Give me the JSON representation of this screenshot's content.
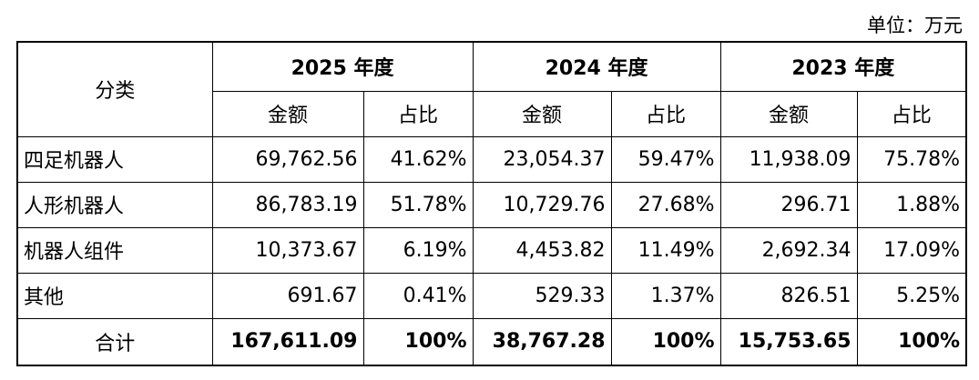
{
  "unit": "单位：万元",
  "table": {
    "header": {
      "category": "分类",
      "years": [
        "2025 年度",
        "2024 年度",
        "2023 年度"
      ],
      "subheaders": [
        [
          "金额",
          "占比"
        ],
        [
          "金额",
          "占比"
        ],
        [
          "金额",
          "占比"
        ]
      ]
    },
    "rows": [
      [
        "四足机器人",
        "69,762.56",
        "41.62%",
        "23,054.37",
        "59.47%",
        "11,938.09",
        "75.78%"
      ],
      [
        "人形机器人",
        "86,783.19",
        "51.78%",
        "10,729.76",
        "27.68%",
        "296.71",
        "1.88%"
      ],
      [
        "机器人组件",
        "10,373.67",
        "6.19%",
        "4,453.82",
        "11.49%",
        "2,692.34",
        "17.09%"
      ],
      [
        "其他",
        "691.67",
        "0.41%",
        "529.33",
        "1.37%",
        "826.51",
        "5.25%"
      ]
    ],
    "total": [
      "合计",
      "167,611.09",
      "100%",
      "38,767.28",
      "100%",
      "15,753.65",
      "100%"
    ]
  }
}
